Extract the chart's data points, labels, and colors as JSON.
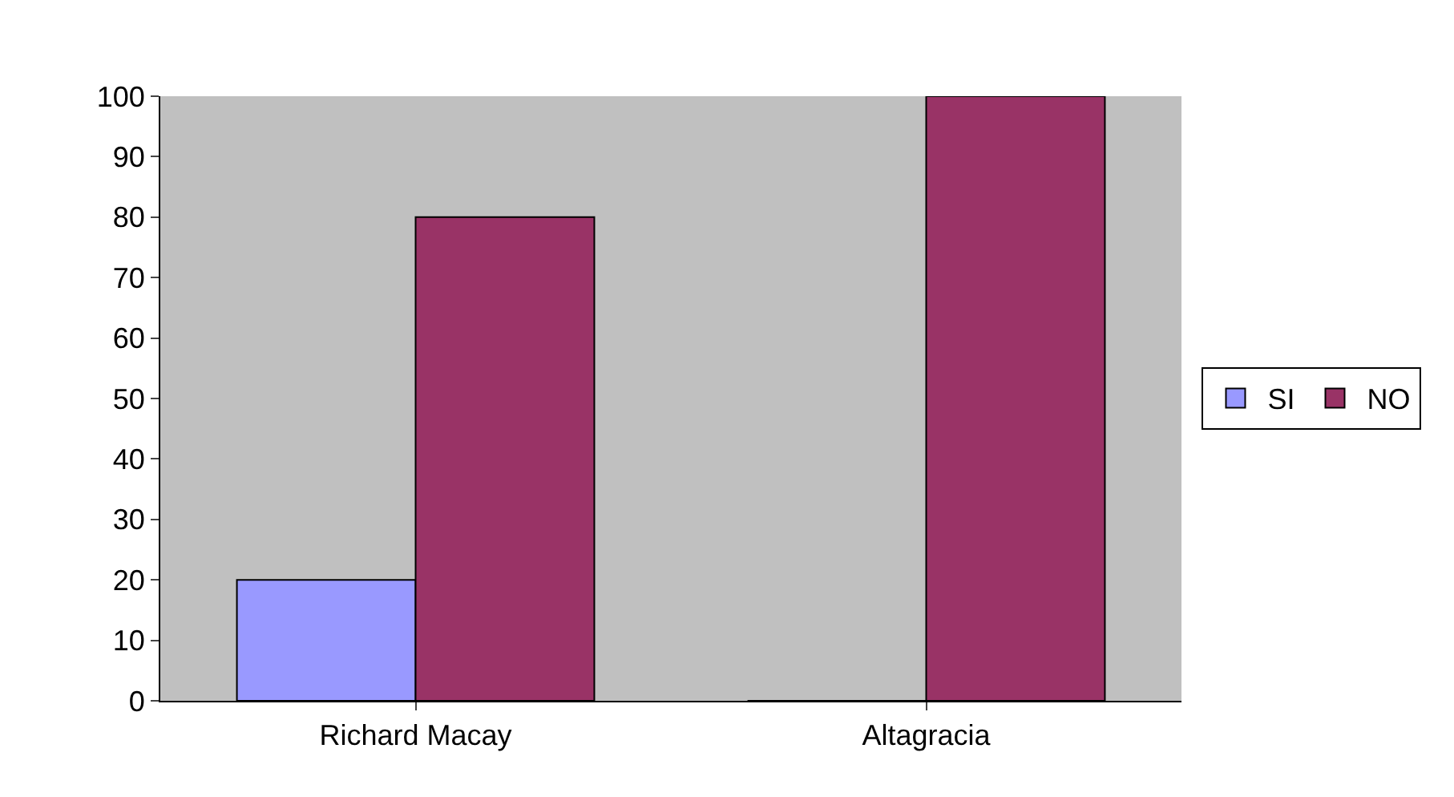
{
  "chart_data": {
    "type": "bar",
    "categories": [
      "Richard Macay",
      "Altagracia"
    ],
    "series": [
      {
        "name": "SI",
        "color": "#9999ff",
        "values": [
          20,
          0
        ]
      },
      {
        "name": "NO",
        "color": "#993366",
        "values": [
          80,
          100
        ]
      }
    ],
    "ylim": [
      0,
      100
    ],
    "yticks": [
      0,
      10,
      20,
      30,
      40,
      50,
      60,
      70,
      80,
      90,
      100
    ],
    "legend": "right"
  }
}
